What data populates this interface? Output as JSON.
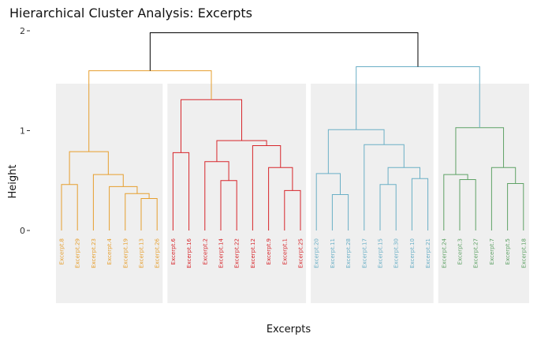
{
  "chart_data": {
    "type": "dendrogram",
    "title": "Hierarchical Cluster Analysis: Excerpts",
    "xlabel": "Excerpts",
    "ylabel": "Height",
    "ylim": [
      -0.85,
      2
    ],
    "yticks": [
      0,
      1,
      2
    ],
    "grid": false,
    "root_height": 1.98,
    "root_split_heights": [
      1.6,
      1.64
    ],
    "clusters": [
      {
        "color": "#E69F2E",
        "leaves": [
          "Excerpt.8",
          "Excerpt.29",
          "Excerpt.23",
          "Excerpt.4",
          "Excerpt.19",
          "Excerpt.13",
          "Excerpt.26"
        ],
        "merges": [
          {
            "a": 0,
            "b": 1,
            "h": 0.46
          },
          {
            "a": 5,
            "b": 6,
            "h": 0.32
          },
          {
            "a": 4,
            "b": [
              5,
              6
            ],
            "h": 0.37
          },
          {
            "a": 3,
            "b": [
              4,
              6
            ],
            "h": 0.44
          },
          {
            "a": 2,
            "b": [
              3,
              6
            ],
            "h": 0.56
          },
          {
            "a": [
              0,
              1
            ],
            "b": [
              2,
              6
            ],
            "h": 0.79
          },
          {
            "a": [
              0,
              6
            ],
            "b": "sibling",
            "h": 1.6
          }
        ]
      },
      {
        "color": "#D7262B",
        "leaves": [
          "Excerpt.6",
          "Excerpt.16",
          "Excerpt.2",
          "Excerpt.14",
          "Excerpt.22",
          "Excerpt.12",
          "Excerpt.9",
          "Excerpt.1",
          "Excerpt.25"
        ],
        "merges": [
          {
            "a": 0,
            "b": 1,
            "h": 0.78
          },
          {
            "a": 3,
            "b": 4,
            "h": 0.5
          },
          {
            "a": 2,
            "b": [
              3,
              4
            ],
            "h": 0.69
          },
          {
            "a": 7,
            "b": 8,
            "h": 0.4
          },
          {
            "a": 6,
            "b": [
              7,
              8
            ],
            "h": 0.63
          },
          {
            "a": 5,
            "b": [
              6,
              8
            ],
            "h": 0.85
          },
          {
            "a": [
              2,
              4
            ],
            "b": [
              5,
              8
            ],
            "h": 0.9
          },
          {
            "a": [
              0,
              1
            ],
            "b": [
              2,
              8
            ],
            "h": 1.31
          }
        ]
      },
      {
        "color": "#6AAFC6",
        "leaves": [
          "Excerpt.20",
          "Excerpt.11",
          "Excerpt.28",
          "Excerpt.17",
          "Excerpt.15",
          "Excerpt.30",
          "Excerpt.10",
          "Excerpt.21"
        ],
        "merges": [
          {
            "a": 1,
            "b": 2,
            "h": 0.36
          },
          {
            "a": 0,
            "b": [
              1,
              2
            ],
            "h": 0.57
          },
          {
            "a": 4,
            "b": 5,
            "h": 0.46
          },
          {
            "a": 6,
            "b": 7,
            "h": 0.52
          },
          {
            "a": [
              4,
              5
            ],
            "b": [
              6,
              7
            ],
            "h": 0.63
          },
          {
            "a": 3,
            "b": [
              4,
              7
            ],
            "h": 0.86
          },
          {
            "a": [
              0,
              2
            ],
            "b": [
              3,
              7
            ],
            "h": 1.01
          }
        ]
      },
      {
        "color": "#5FA266",
        "leaves": [
          "Excerpt.24",
          "Excerpt.3",
          "Excerpt.27",
          "Excerpt.7",
          "Excerpt.5",
          "Excerpt.18"
        ],
        "merges": [
          {
            "a": 1,
            "b": 2,
            "h": 0.51
          },
          {
            "a": 0,
            "b": [
              1,
              2
            ],
            "h": 0.56
          },
          {
            "a": 4,
            "b": 5,
            "h": 0.47
          },
          {
            "a": 3,
            "b": [
              4,
              5
            ],
            "h": 0.63
          },
          {
            "a": [
              0,
              2
            ],
            "b": [
              3,
              5
            ],
            "h": 1.03
          },
          {
            "a": [
              0,
              5
            ],
            "b": "sibling",
            "h": 1.64
          }
        ]
      }
    ]
  }
}
